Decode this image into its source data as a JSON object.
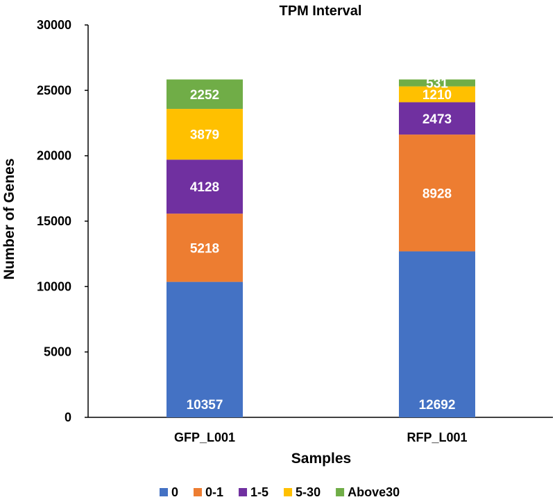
{
  "chart_data": {
    "type": "bar",
    "stacked": true,
    "title": "TPM Interval",
    "xlabel": "Samples",
    "ylabel": "Number of Genes",
    "ylim": [
      0,
      30000
    ],
    "yticks": [
      0,
      5000,
      10000,
      15000,
      20000,
      25000,
      30000
    ],
    "grid": false,
    "legend_position": "bottom",
    "categories": [
      "GFP_L001",
      "RFP_L001"
    ],
    "series": [
      {
        "name": "0",
        "color": "#4472C4",
        "values": [
          10357,
          12692
        ]
      },
      {
        "name": "0-1",
        "color": "#ED7D31",
        "values": [
          5218,
          8928
        ]
      },
      {
        "name": "1-5",
        "color": "#7030A0",
        "values": [
          4128,
          2473
        ]
      },
      {
        "name": "5-30",
        "color": "#FFC000",
        "values": [
          3879,
          1210
        ]
      },
      {
        "name": "Above30",
        "color": "#70AD47",
        "values": [
          2252,
          531
        ]
      }
    ]
  }
}
